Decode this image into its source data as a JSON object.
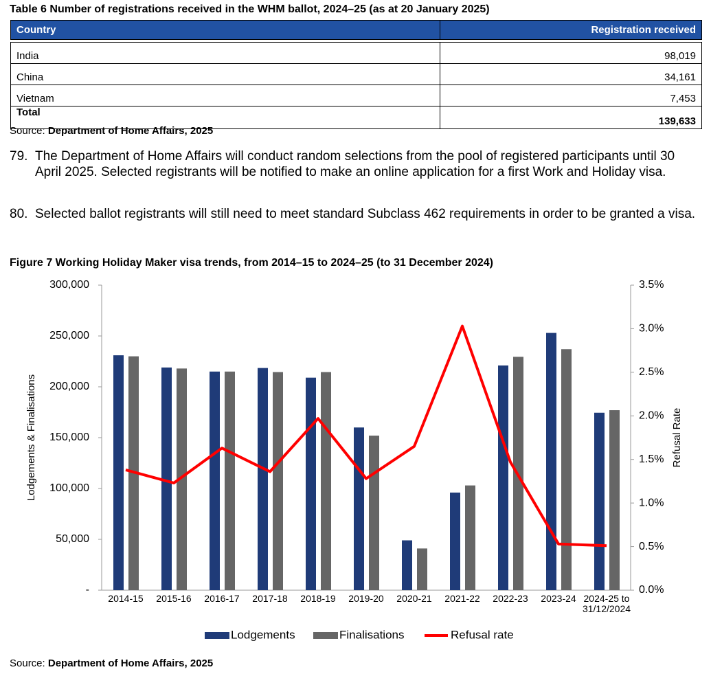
{
  "table": {
    "title": "Table 6 Number of registrations received in the WHM ballot, 2024–25 (as at 20 January 2025)",
    "header": [
      "Country",
      "Registration received"
    ],
    "rows": [
      [
        "India",
        "98,019"
      ],
      [
        "China",
        "34,161"
      ],
      [
        "Vietnam",
        "7,453"
      ]
    ],
    "total": [
      "Total",
      "139,633"
    ],
    "source_label": "Source:",
    "source": "Department of Home Affairs, 2025"
  },
  "paragraphs": [
    {
      "number": "79.",
      "text": "The Department of Home Affairs will conduct random selections from the pool of registered participants until 30 April 2025. Selected registrants will be notified to make an online application for a first Work and Holiday visa."
    },
    {
      "number": "80.",
      "text": "Selected ballot registrants will still need to meet standard Subclass 462 requirements in order to be granted a visa."
    }
  ],
  "chart_data": {
    "type": "bar",
    "title": "Figure 7 Working Holiday Maker visa trends, from 2014–15 to 2024–25 (to 31 December 2024)",
    "categories": [
      "2014-15",
      "2015-16",
      "2016-17",
      "2017-18",
      "2018-19",
      "2019-20",
      "2020-21",
      "2021-22",
      "2022-23",
      "2023-24",
      "2024-25 to\n31/12/2024"
    ],
    "series": [
      {
        "name": "Lodgements",
        "type": "bar",
        "color": "#1f3b78",
        "values": [
          231000,
          219000,
          215000,
          218500,
          209000,
          160000,
          49000,
          96000,
          221000,
          253000,
          174500
        ]
      },
      {
        "name": "Finalisations",
        "type": "bar",
        "color": "#666666",
        "values": [
          230000,
          218000,
          215000,
          214500,
          214500,
          152000,
          41000,
          103000,
          229500,
          237000,
          177000
        ]
      },
      {
        "name": "Refusal rate",
        "type": "line",
        "axis": "y2",
        "color": "#ff0000",
        "values": [
          1.38,
          1.23,
          1.63,
          1.36,
          1.97,
          1.28,
          1.65,
          3.03,
          1.47,
          0.53,
          0.51
        ]
      }
    ],
    "ylabel": "Lodgements & Finalisations",
    "y2label": "Refusal Rate",
    "ylim": [
      0,
      300000
    ],
    "yticks": [
      {
        "value": 0,
        "label": "-"
      },
      {
        "value": 50000,
        "label": "50,000"
      },
      {
        "value": 100000,
        "label": "100,000"
      },
      {
        "value": 150000,
        "label": "150,000"
      },
      {
        "value": 200000,
        "label": "200,000"
      },
      {
        "value": 250000,
        "label": "250,000"
      },
      {
        "value": 300000,
        "label": "300,000"
      }
    ],
    "y2lim": [
      0,
      3.5
    ],
    "y2ticks": [
      {
        "value": 0,
        "label": "0.0%"
      },
      {
        "value": 0.5,
        "label": "0.5%"
      },
      {
        "value": 1,
        "label": "1.0%"
      },
      {
        "value": 1.5,
        "label": "1.5%"
      },
      {
        "value": 2,
        "label": "2.0%"
      },
      {
        "value": 2.5,
        "label": "2.5%"
      },
      {
        "value": 3,
        "label": "3.0%"
      },
      {
        "value": 3.5,
        "label": "3.5%"
      }
    ],
    "legend": "bottom",
    "source_label": "Source:",
    "source": "Department of Home Affairs, 2025"
  }
}
